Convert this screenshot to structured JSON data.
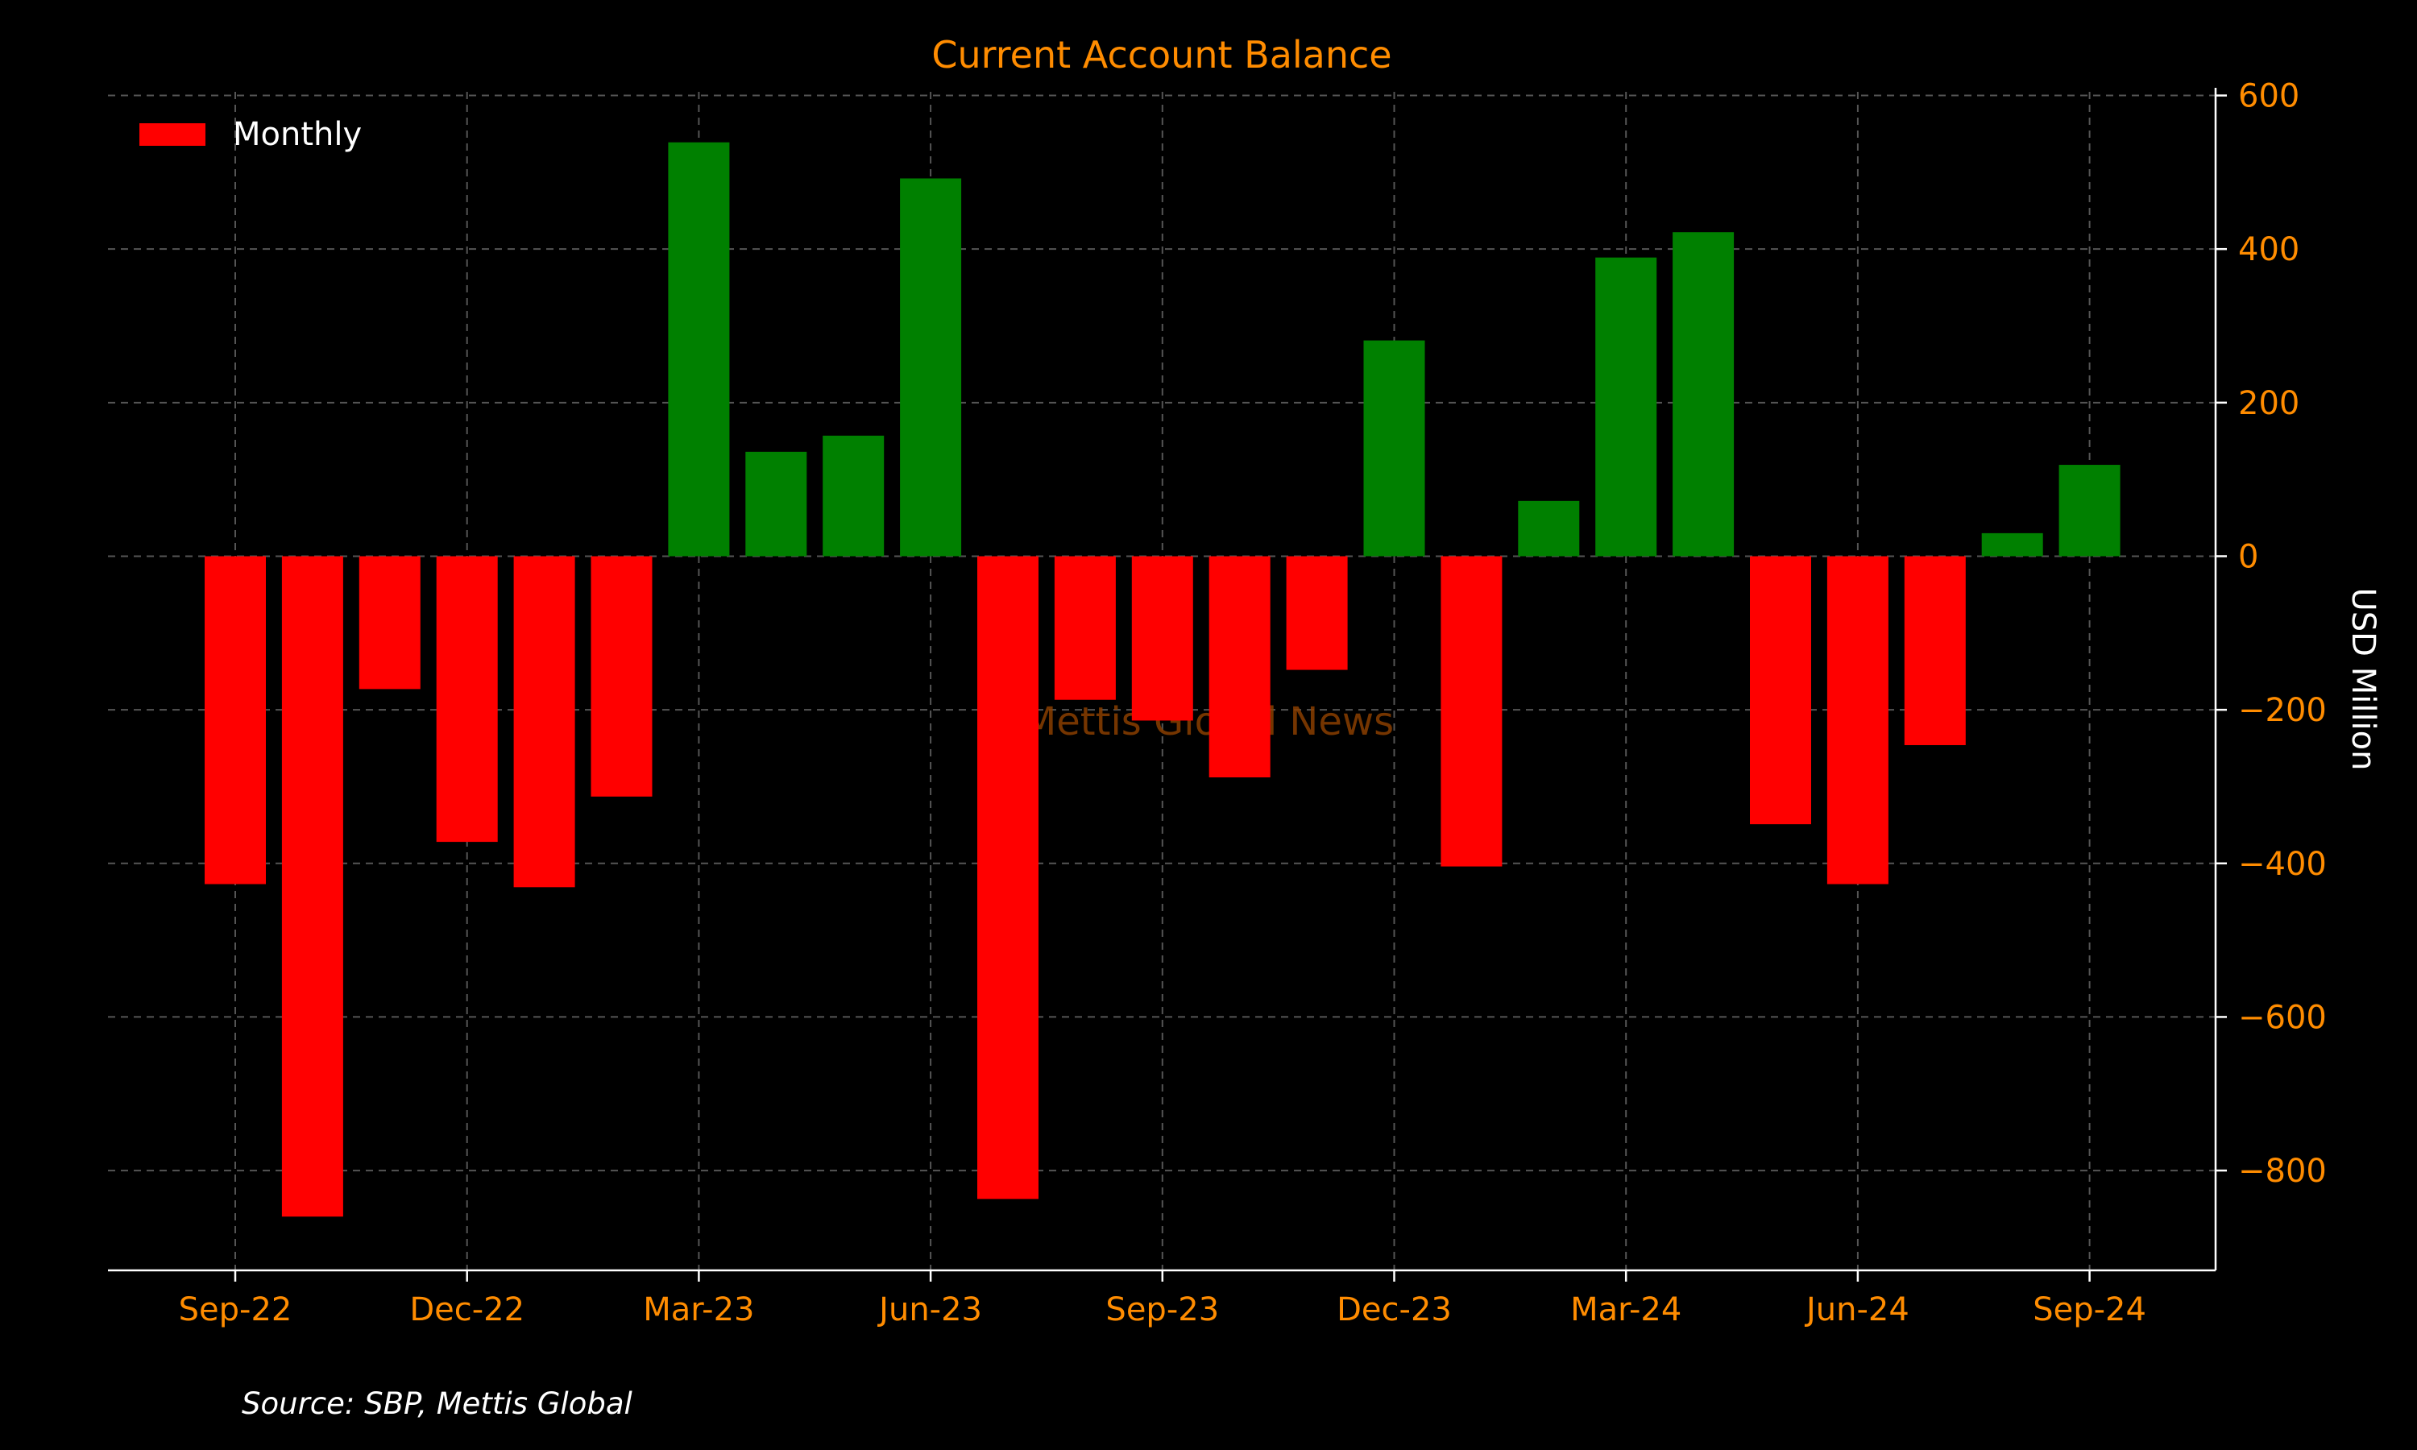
{
  "chart_data": {
    "type": "bar",
    "title": "Current Account Balance",
    "ylabel": "USD Million",
    "xlabel": "",
    "legend": {
      "label": "Monthly",
      "color": "#ff0000",
      "placement": "top-left"
    },
    "source": "Source: SBP, Mettis Global",
    "watermark": "Mettis Global News",
    "categories": [
      "Sep-22",
      "Oct-22",
      "Nov-22",
      "Dec-22",
      "Jan-23",
      "Feb-23",
      "Mar-23",
      "Apr-23",
      "May-23",
      "Jun-23",
      "Jul-23",
      "Aug-23",
      "Sep-23",
      "Oct-23",
      "Nov-23",
      "Dec-23",
      "Jan-24",
      "Feb-24",
      "Mar-24",
      "Apr-24",
      "May-24",
      "Jun-24",
      "Jul-24",
      "Aug-24",
      "Sep-24"
    ],
    "values": [
      -427,
      -860,
      -173,
      -372,
      -431,
      -313,
      539,
      136,
      157,
      492,
      -837,
      -187,
      -214,
      -288,
      -148,
      281,
      -404,
      72,
      389,
      422,
      -349,
      -427,
      -246,
      30,
      119
    ],
    "xtick_labels": [
      "Sep-22",
      "Dec-22",
      "Mar-23",
      "Jun-23",
      "Sep-23",
      "Dec-23",
      "Mar-24",
      "Jun-24",
      "Sep-24"
    ],
    "xtick_indices": [
      0,
      3,
      6,
      9,
      12,
      15,
      18,
      21,
      24
    ],
    "yticks": [
      600,
      400,
      200,
      0,
      -200,
      -400,
      -600,
      -800
    ],
    "ylim": [
      -930,
      610
    ],
    "y_axis_side": "right",
    "grid": true,
    "colors": {
      "positive": "#008000",
      "negative": "#ff0000",
      "title": "#ff8c00",
      "ticks": "#ff8c00",
      "background": "#000000"
    }
  }
}
